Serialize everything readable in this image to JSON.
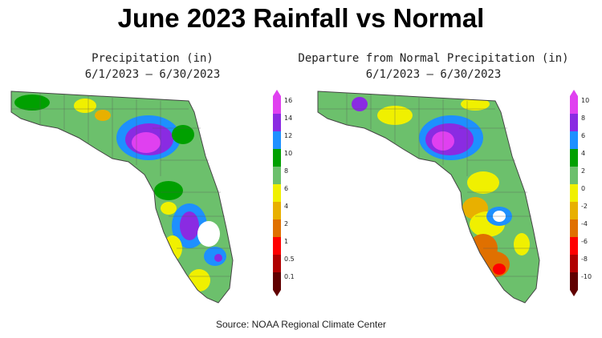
{
  "title": "June 2023 Rainfall vs Normal",
  "left_panel": {
    "title_line1": "Precipitation (in)",
    "title_line2": "6/1/2023 – 6/30/2023",
    "legend": [
      "16",
      "14",
      "12",
      "10",
      "8",
      "6",
      "4",
      "2",
      "1",
      "0.5",
      "0.1"
    ],
    "colors": [
      "#e040f0",
      "#8a2be2",
      "#1e90ff",
      "#00a000",
      "#6cc06c",
      "#f0f000",
      "#e8b000",
      "#e07000",
      "#ff0000",
      "#b00000",
      "#600000"
    ]
  },
  "right_panel": {
    "title_line1": "Departure from Normal Precipitation (in)",
    "title_line2": "6/1/2023 – 6/30/2023",
    "legend": [
      "10",
      "8",
      "6",
      "4",
      "2",
      "0",
      "-2",
      "-4",
      "-6",
      "-8",
      "-10"
    ],
    "colors": [
      "#e040f0",
      "#8a2be2",
      "#1e90ff",
      "#00a000",
      "#6cc06c",
      "#f0f000",
      "#e8b000",
      "#e07000",
      "#ff0000",
      "#b00000",
      "#600000"
    ]
  },
  "source": "Source:  NOAA Regional Climate Center"
}
